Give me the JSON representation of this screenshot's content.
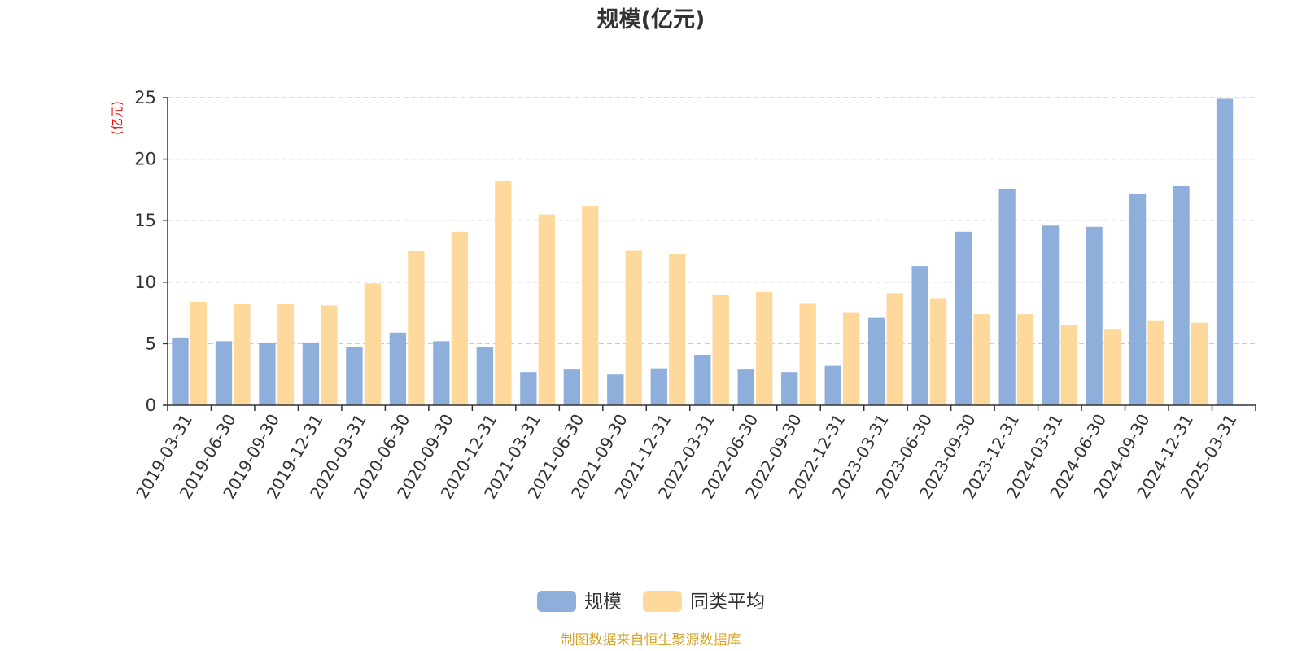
{
  "chart_data": {
    "type": "bar",
    "title": "规模(亿元)",
    "y_unit": "(亿元)",
    "ylim": [
      0,
      25
    ],
    "y_ticks": [
      0,
      5,
      10,
      15,
      20,
      25
    ],
    "grid": true,
    "legend_position": "bottom-center",
    "categories": [
      "2019-03-31",
      "2019-06-30",
      "2019-09-30",
      "2019-12-31",
      "2020-03-31",
      "2020-06-30",
      "2020-09-30",
      "2020-12-31",
      "2021-03-31",
      "2021-06-30",
      "2021-09-30",
      "2021-12-31",
      "2022-03-31",
      "2022-06-30",
      "2022-09-30",
      "2022-12-31",
      "2023-03-31",
      "2023-06-30",
      "2023-09-30",
      "2023-12-31",
      "2024-03-31",
      "2024-06-30",
      "2024-09-30",
      "2024-12-31",
      "2025-03-31"
    ],
    "series": [
      {
        "name": "规模",
        "color": "#8eaedc",
        "values": [
          5.5,
          5.2,
          5.1,
          5.1,
          4.7,
          5.9,
          5.2,
          4.7,
          2.7,
          2.9,
          2.5,
          3.0,
          4.1,
          2.9,
          2.7,
          3.2,
          7.1,
          11.3,
          14.1,
          17.6,
          14.6,
          14.5,
          17.2,
          17.8,
          24.9
        ]
      },
      {
        "name": "同类平均",
        "color": "#ffd99b",
        "values": [
          8.4,
          8.2,
          8.2,
          8.1,
          9.9,
          12.5,
          14.1,
          18.2,
          15.5,
          16.2,
          12.6,
          12.3,
          9.0,
          9.2,
          8.3,
          7.5,
          9.1,
          8.7,
          7.4,
          7.4,
          6.5,
          6.2,
          6.9,
          6.7,
          null
        ]
      }
    ]
  },
  "source": {
    "text": "制图数据来自恒生聚源数据库",
    "color": "#d4a52a"
  },
  "colors": {
    "unit_label": "#ff0000",
    "axis": "#333333",
    "grid": "#cccccc"
  }
}
